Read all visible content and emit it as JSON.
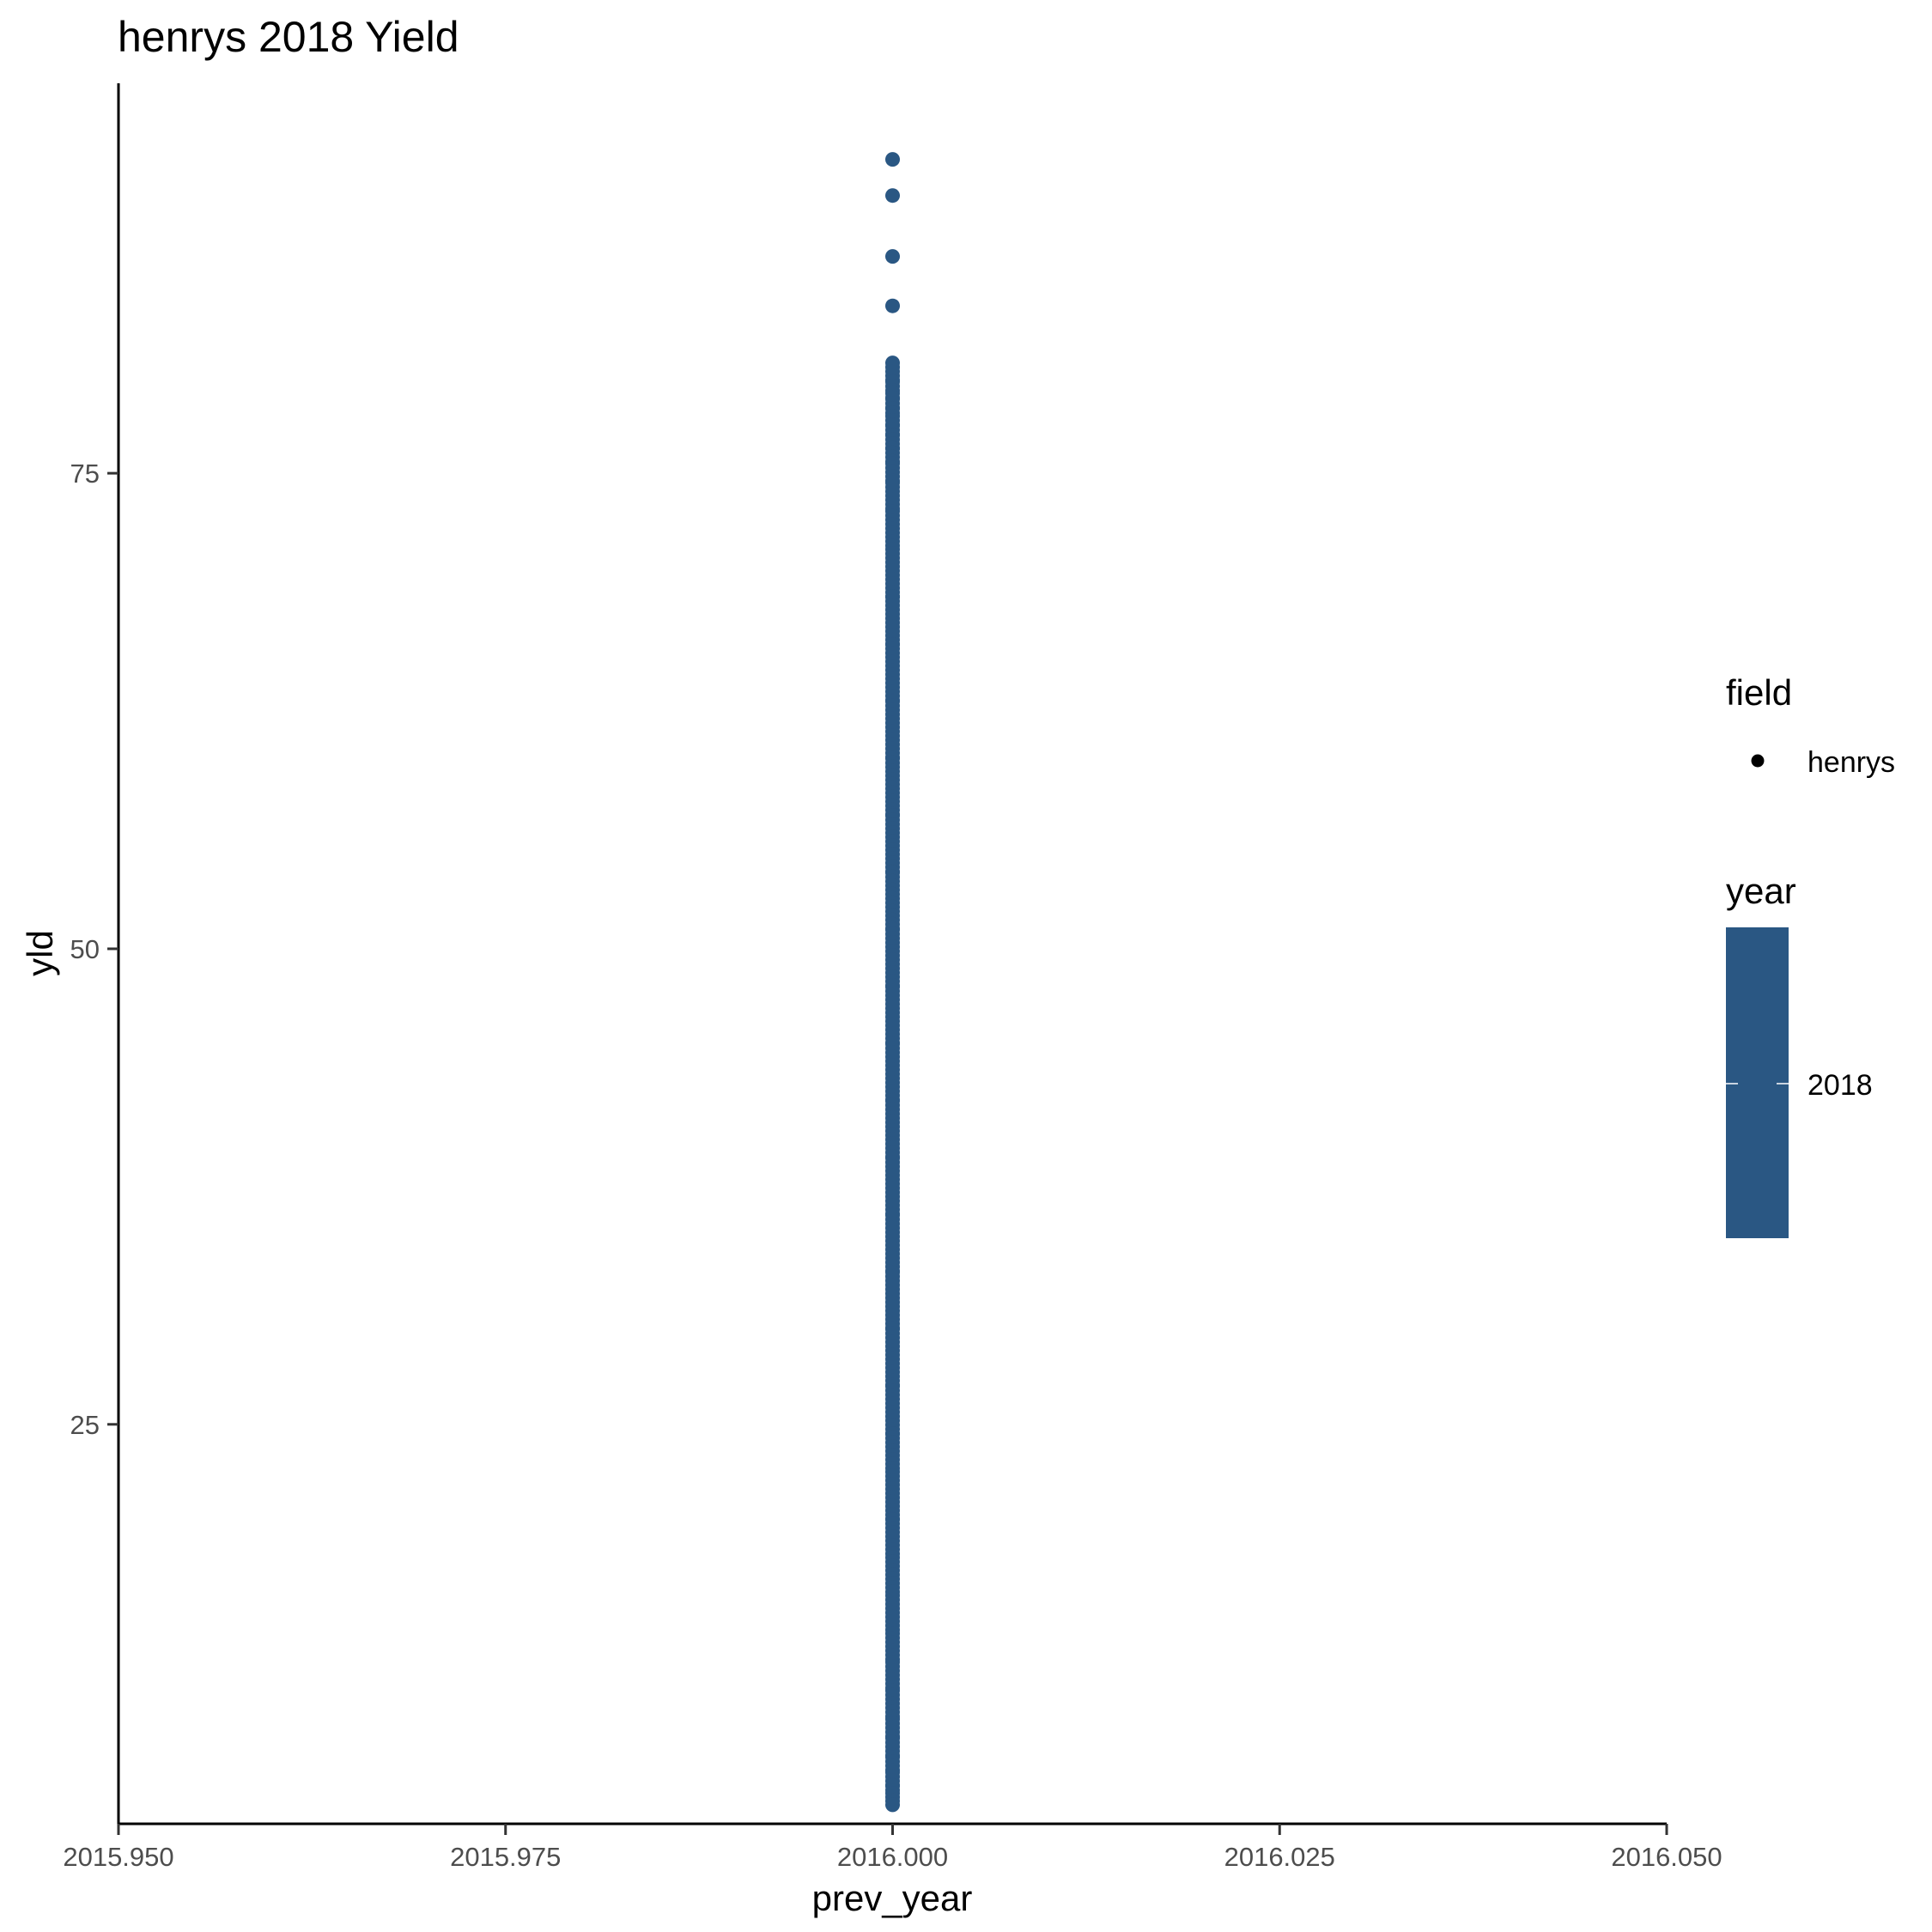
{
  "chart_data": {
    "type": "scatter",
    "title": "henrys 2018 Yield",
    "xlabel": "prev_year",
    "ylabel": "yld",
    "xlim": [
      2015.95,
      2016.05
    ],
    "ylim": [
      4.0,
      95.5
    ],
    "x_ticks": [
      2015.95,
      2015.975,
      2016.0,
      2016.025,
      2016.05
    ],
    "x_tick_labels": [
      "2015.950",
      "2015.975",
      "2016.000",
      "2016.025",
      "2016.050"
    ],
    "y_ticks": [
      25,
      50,
      75
    ],
    "y_tick_labels": [
      "25",
      "50",
      "75"
    ],
    "grid": false,
    "point_color": "#2a5783",
    "series": [
      {
        "name": "henrys",
        "x": 2016.0,
        "y": [
          91.5,
          89.6,
          86.4,
          83.8,
          80.8,
          79.8,
          79.2,
          78.9,
          78.4,
          78.0,
          77.5,
          77.0,
          76.3,
          75.5,
          74.5,
          73.0,
          71.0,
          68.5,
          66.0,
          63.0,
          60.0,
          57.0,
          54.0,
          51.0,
          48.0,
          45.0,
          42.0,
          39.0,
          36.0,
          33.0,
          30.0,
          27.0,
          24.5,
          22.5,
          20.0,
          18.0,
          16.0,
          14.0,
          12.5,
          11.0,
          9.5,
          8.5,
          7.5,
          6.7,
          6.0,
          5.6,
          5.4,
          5.2,
          5.0
        ]
      }
    ],
    "legend": {
      "placement": "right",
      "field": {
        "title": "field",
        "items": [
          "henrys"
        ]
      },
      "year": {
        "title": "year",
        "label": "2018",
        "color": "#2a5783"
      }
    }
  }
}
